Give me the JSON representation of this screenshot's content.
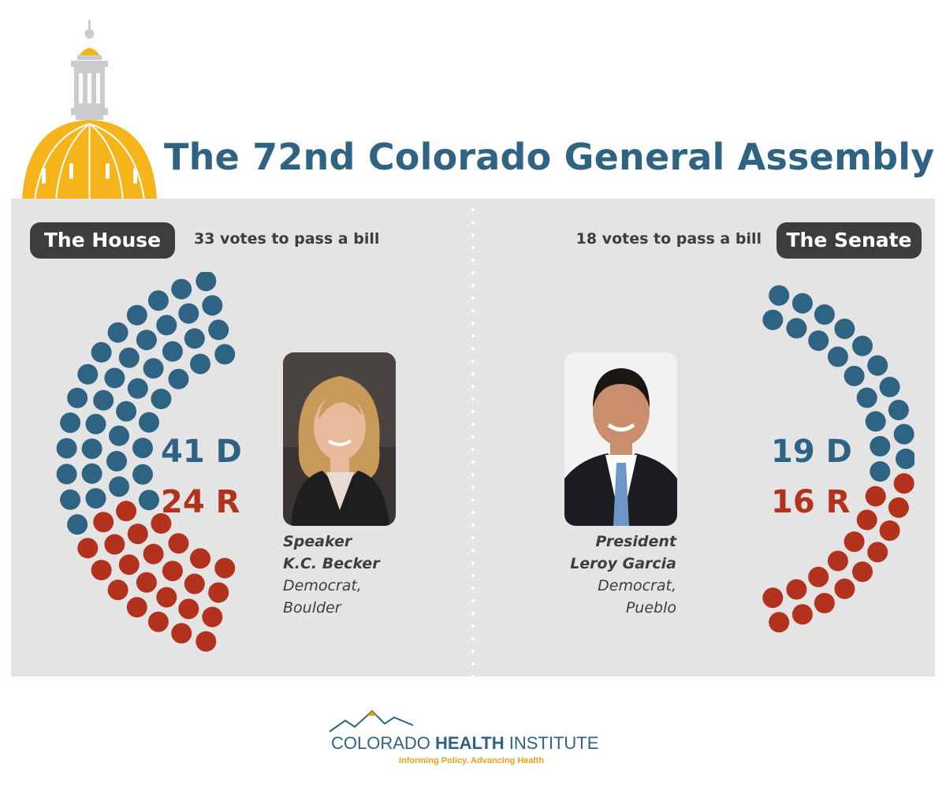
{
  "title": "The 72nd Colorado General Assembly",
  "house": {
    "label": "The House",
    "votes_needed": "33 votes to pass a bill",
    "dem_label": "41 D",
    "rep_label": "24 R",
    "dem_seats": 41,
    "rep_seats": 24,
    "leader": {
      "title": "Speaker",
      "name": "K.C. Becker",
      "party": "Democrat,",
      "city": "Boulder"
    }
  },
  "senate": {
    "label": "The Senate",
    "votes_needed": "18 votes to pass a bill",
    "dem_label": "19 D",
    "rep_label": "16 R",
    "dem_seats": 19,
    "rep_seats": 16,
    "leader": {
      "title": "President",
      "name": "Leroy Garcia",
      "party": "Democrat,",
      "city": "Pueblo"
    }
  },
  "colors": {
    "democrat": "#2f6384",
    "republican": "#b3321d",
    "dome": "#f4b41a",
    "pill": "#3d3d3e",
    "panel": "#e4e4e5"
  },
  "footer": {
    "org_part1": "COLORADO ",
    "org_part2": "HEALTH",
    "org_part3": " INSTITUTE",
    "tagline": "Informing Policy. Advancing Health"
  }
}
